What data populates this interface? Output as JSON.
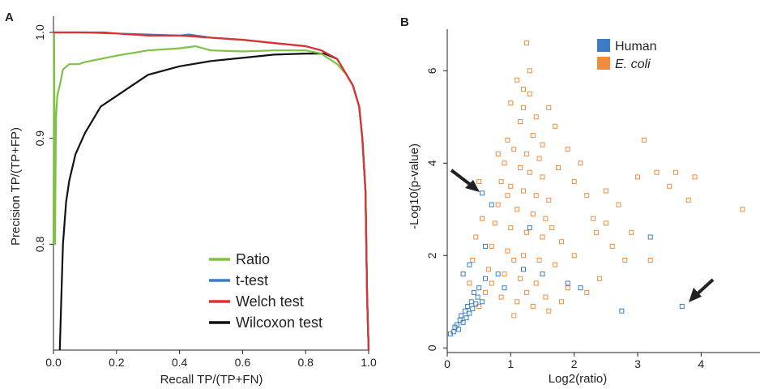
{
  "chart_data": [
    {
      "panel_label": "A",
      "type": "line",
      "xlabel": "Recall  TP/(TP+FN)",
      "ylabel": "Precision  TP/(TP+FP)",
      "xlim": [
        0,
        1
      ],
      "ylim": [
        0.7,
        1.0
      ],
      "xticks": [
        0,
        0.2,
        0.4,
        0.6,
        0.8,
        1.0
      ],
      "xtick_labels": [
        "0.0",
        "0.2",
        "0.4",
        "0.6",
        "0.8",
        "1.0"
      ],
      "yticks": [
        0.8,
        0.9,
        1.0
      ],
      "ytick_labels": [
        "0.8",
        "0.9",
        "1.0"
      ],
      "legend_position": "bottom-right",
      "series": [
        {
          "name": "Ratio",
          "color": "#7dc242",
          "x": [
            0,
            0.002,
            0.005,
            0.008,
            0.012,
            0.02,
            0.03,
            0.05,
            0.08,
            0.1,
            0.15,
            0.2,
            0.3,
            0.4,
            0.45,
            0.5,
            0.6,
            0.7,
            0.8,
            0.85,
            0.9,
            0.93,
            0.95,
            0.97,
            0.98,
            0.99,
            0.995,
            1.0
          ],
          "y": [
            0.8,
            1.0,
            0.8,
            0.92,
            0.94,
            0.95,
            0.965,
            0.97,
            0.97,
            0.972,
            0.975,
            0.978,
            0.983,
            0.985,
            0.987,
            0.983,
            0.982,
            0.983,
            0.983,
            0.98,
            0.97,
            0.96,
            0.95,
            0.93,
            0.9,
            0.85,
            0.75,
            0.7
          ]
        },
        {
          "name": "t-test",
          "color": "#3a7dc4",
          "x": [
            0,
            0.1,
            0.16,
            0.2,
            0.3,
            0.4,
            0.43,
            0.5,
            0.6,
            0.7,
            0.8,
            0.85,
            0.9,
            0.93,
            0.95,
            0.97,
            0.98,
            0.99,
            0.995,
            1.0
          ],
          "y": [
            1.0,
            1.0,
            1.0,
            0.999,
            0.998,
            0.997,
            0.998,
            0.995,
            0.993,
            0.99,
            0.987,
            0.983,
            0.975,
            0.96,
            0.95,
            0.93,
            0.9,
            0.85,
            0.75,
            0.7
          ]
        },
        {
          "name": "Welch test",
          "color": "#e03030",
          "x": [
            0,
            0.1,
            0.2,
            0.3,
            0.4,
            0.5,
            0.6,
            0.7,
            0.8,
            0.85,
            0.9,
            0.93,
            0.95,
            0.97,
            0.98,
            0.99,
            0.995,
            1.0
          ],
          "y": [
            1.0,
            1.0,
            0.999,
            0.997,
            0.997,
            0.995,
            0.993,
            0.99,
            0.987,
            0.983,
            0.975,
            0.96,
            0.95,
            0.93,
            0.9,
            0.85,
            0.75,
            0.7
          ]
        },
        {
          "name": "Wilcoxon test",
          "color": "#111111",
          "x": [
            0.02,
            0.025,
            0.03,
            0.04,
            0.05,
            0.07,
            0.1,
            0.12,
            0.15,
            0.2,
            0.25,
            0.3,
            0.4,
            0.5,
            0.6,
            0.7,
            0.8,
            0.84,
            0.86,
            0.9,
            0.93,
            0.95,
            0.97,
            0.98,
            0.99,
            0.995,
            1.0
          ],
          "y": [
            0.7,
            0.75,
            0.8,
            0.84,
            0.86,
            0.885,
            0.905,
            0.915,
            0.93,
            0.94,
            0.95,
            0.96,
            0.968,
            0.973,
            0.976,
            0.979,
            0.98,
            0.98,
            0.98,
            0.975,
            0.96,
            0.95,
            0.93,
            0.9,
            0.85,
            0.75,
            0.7
          ]
        }
      ]
    },
    {
      "panel_label": "B",
      "type": "scatter",
      "xlabel": "Log2(ratio)",
      "ylabel": "-Log10(p-value)",
      "xlim": [
        0,
        4.8
      ],
      "ylim": [
        -0.1,
        6.9
      ],
      "xticks": [
        0,
        1,
        2,
        3,
        4
      ],
      "xtick_labels": [
        "0",
        "1",
        "2",
        "3",
        "4"
      ],
      "yticks": [
        0,
        2,
        4,
        6
      ],
      "ytick_labels": [
        "0",
        "2",
        "4",
        "6"
      ],
      "legend_position": "top",
      "series": [
        {
          "name": "Human",
          "color": "#3a7dc4",
          "points": [
            [
              0.05,
              0.3
            ],
            [
              0.1,
              0.35
            ],
            [
              0.12,
              0.45
            ],
            [
              0.15,
              0.5
            ],
            [
              0.18,
              0.4
            ],
            [
              0.2,
              0.6
            ],
            [
              0.22,
              0.7
            ],
            [
              0.25,
              0.55
            ],
            [
              0.28,
              0.8
            ],
            [
              0.3,
              0.65
            ],
            [
              0.32,
              0.9
            ],
            [
              0.35,
              0.75
            ],
            [
              0.38,
              1.0
            ],
            [
              0.4,
              0.85
            ],
            [
              0.42,
              1.2
            ],
            [
              0.45,
              0.95
            ],
            [
              0.48,
              1.1
            ],
            [
              0.5,
              1.3
            ],
            [
              0.55,
              1.0
            ],
            [
              0.6,
              1.5
            ],
            [
              0.35,
              1.8
            ],
            [
              0.25,
              1.6
            ],
            [
              0.6,
              2.2
            ],
            [
              0.8,
              1.6
            ],
            [
              0.9,
              1.3
            ],
            [
              1.2,
              1.7
            ],
            [
              1.5,
              1.6
            ],
            [
              1.9,
              1.4
            ],
            [
              0.55,
              3.35
            ],
            [
              0.7,
              3.1
            ],
            [
              1.3,
              2.6
            ],
            [
              2.1,
              1.3
            ],
            [
              2.75,
              0.8
            ],
            [
              3.2,
              2.4
            ],
            [
              3.7,
              0.9
            ]
          ]
        },
        {
          "name": "E. coli",
          "color": "#f28b3b",
          "points": [
            [
              1.25,
              6.6
            ],
            [
              1.1,
              5.8
            ],
            [
              1.3,
              5.5
            ],
            [
              1.2,
              5.2
            ],
            [
              1.4,
              5.0
            ],
            [
              1.0,
              5.3
            ],
            [
              1.15,
              4.9
            ],
            [
              1.35,
              4.6
            ],
            [
              0.95,
              4.5
            ],
            [
              1.05,
              4.3
            ],
            [
              1.25,
              4.2
            ],
            [
              1.45,
              4.1
            ],
            [
              0.9,
              4.0
            ],
            [
              1.15,
              3.9
            ],
            [
              1.3,
              3.8
            ],
            [
              1.5,
              3.7
            ],
            [
              0.85,
              3.6
            ],
            [
              1.0,
              3.5
            ],
            [
              1.2,
              3.4
            ],
            [
              1.4,
              3.3
            ],
            [
              1.6,
              3.2
            ],
            [
              0.8,
              3.1
            ],
            [
              1.1,
              3.0
            ],
            [
              1.35,
              2.9
            ],
            [
              1.55,
              2.8
            ],
            [
              0.75,
              2.7
            ],
            [
              1.0,
              2.6
            ],
            [
              1.25,
              2.5
            ],
            [
              1.5,
              2.4
            ],
            [
              1.8,
              2.3
            ],
            [
              0.7,
              2.2
            ],
            [
              0.95,
              2.1
            ],
            [
              1.2,
              2.0
            ],
            [
              1.45,
              1.9
            ],
            [
              1.7,
              1.8
            ],
            [
              0.65,
              1.7
            ],
            [
              0.9,
              1.6
            ],
            [
              1.15,
              1.5
            ],
            [
              1.4,
              1.4
            ],
            [
              1.9,
              1.3
            ],
            [
              0.6,
              1.2
            ],
            [
              0.85,
              1.1
            ],
            [
              1.1,
              1.0
            ],
            [
              1.35,
              0.9
            ],
            [
              1.6,
              0.8
            ],
            [
              2.0,
              3.6
            ],
            [
              2.2,
              3.3
            ],
            [
              2.5,
              3.4
            ],
            [
              2.3,
              2.8
            ],
            [
              2.6,
              2.2
            ],
            [
              2.4,
              1.5
            ],
            [
              2.8,
              1.9
            ],
            [
              2.9,
              2.5
            ],
            [
              2.7,
              3.1
            ],
            [
              3.0,
              3.7
            ],
            [
              3.1,
              4.5
            ],
            [
              3.3,
              3.8
            ],
            [
              3.5,
              3.5
            ],
            [
              3.6,
              3.8
            ],
            [
              3.8,
              3.2
            ],
            [
              3.9,
              3.7
            ],
            [
              4.65,
              3.0
            ],
            [
              1.7,
              4.8
            ],
            [
              1.6,
              5.2
            ],
            [
              1.9,
              4.3
            ],
            [
              2.1,
              4.0
            ],
            [
              0.5,
              3.6
            ],
            [
              0.55,
              2.8
            ],
            [
              0.45,
              2.4
            ],
            [
              0.4,
              1.9
            ],
            [
              0.35,
              1.4
            ],
            [
              0.5,
              0.9
            ],
            [
              1.05,
              0.7
            ],
            [
              1.8,
              1.0
            ],
            [
              2.2,
              1.2
            ],
            [
              3.2,
              1.9
            ],
            [
              2.0,
              2.0
            ],
            [
              1.3,
              6.0
            ],
            [
              1.2,
              5.6
            ],
            [
              1.5,
              4.4
            ],
            [
              1.75,
              3.9
            ],
            [
              0.8,
              4.2
            ],
            [
              0.95,
              3.3
            ],
            [
              1.65,
              2.6
            ],
            [
              2.35,
              2.5
            ],
            [
              1.05,
              1.9
            ],
            [
              1.25,
              1.2
            ],
            [
              0.7,
              1.4
            ],
            [
              1.55,
              1.1
            ],
            [
              2.5,
              2.7
            ]
          ]
        }
      ]
    }
  ]
}
